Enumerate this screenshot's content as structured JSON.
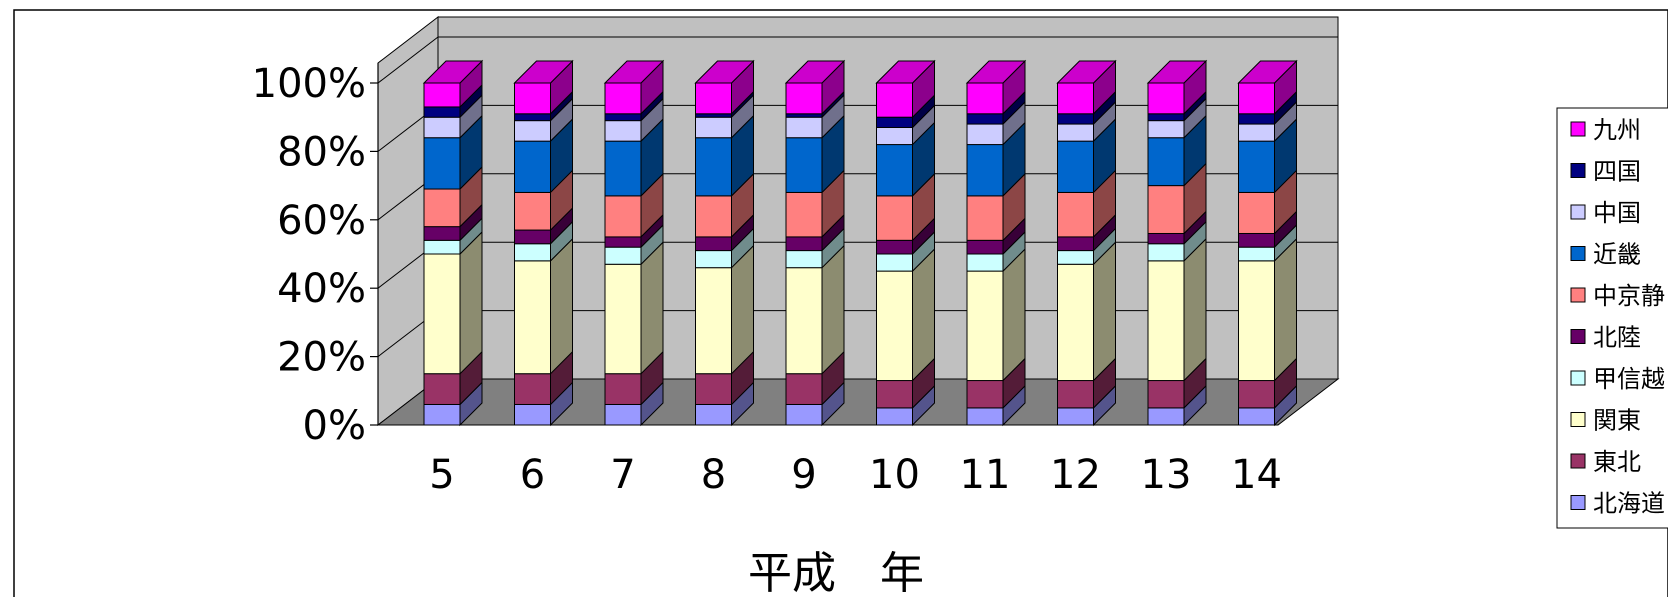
{
  "chart_data": {
    "type": "bar",
    "stacked": "percent",
    "style": "3d",
    "xlabel": "平成　年",
    "ylabel": "",
    "ylim": [
      0,
      100
    ],
    "yticks": [
      "0%",
      "20%",
      "40%",
      "60%",
      "80%",
      "100%"
    ],
    "grid": true,
    "legend": "right",
    "categories": [
      "5",
      "6",
      "7",
      "8",
      "9",
      "10",
      "11",
      "12",
      "13",
      "14"
    ],
    "series": [
      {
        "name": "北海道",
        "color": "#9999ff",
        "values": [
          6,
          6,
          6,
          6,
          6,
          5,
          5,
          5,
          5,
          5
        ]
      },
      {
        "name": "東北",
        "color": "#993366",
        "values": [
          9,
          9,
          9,
          9,
          9,
          8,
          8,
          8,
          8,
          8
        ]
      },
      {
        "name": "関東",
        "color": "#ffffcc",
        "values": [
          35,
          33,
          32,
          31,
          31,
          32,
          32,
          34,
          35,
          35
        ]
      },
      {
        "name": "甲信越",
        "color": "#ccffff",
        "values": [
          4,
          5,
          5,
          5,
          5,
          5,
          5,
          4,
          5,
          4
        ]
      },
      {
        "name": "北陸",
        "color": "#660066",
        "values": [
          4,
          4,
          3,
          4,
          4,
          4,
          4,
          4,
          3,
          4
        ]
      },
      {
        "name": "中京静",
        "color": "#ff8080",
        "values": [
          11,
          11,
          12,
          12,
          13,
          13,
          13,
          13,
          14,
          12
        ]
      },
      {
        "name": "近畿",
        "color": "#0066cc",
        "values": [
          15,
          15,
          16,
          17,
          16,
          15,
          15,
          15,
          14,
          15
        ]
      },
      {
        "name": "中国",
        "color": "#ccccff",
        "values": [
          6,
          6,
          6,
          6,
          6,
          5,
          6,
          5,
          5,
          5
        ]
      },
      {
        "name": "四国",
        "color": "#000080",
        "values": [
          3,
          2,
          2,
          1,
          1,
          3,
          3,
          3,
          2,
          3
        ]
      },
      {
        "name": "九州",
        "color": "#ff00ff",
        "values": [
          7,
          9,
          9,
          9,
          9,
          10,
          9,
          9,
          9,
          9
        ]
      }
    ]
  }
}
